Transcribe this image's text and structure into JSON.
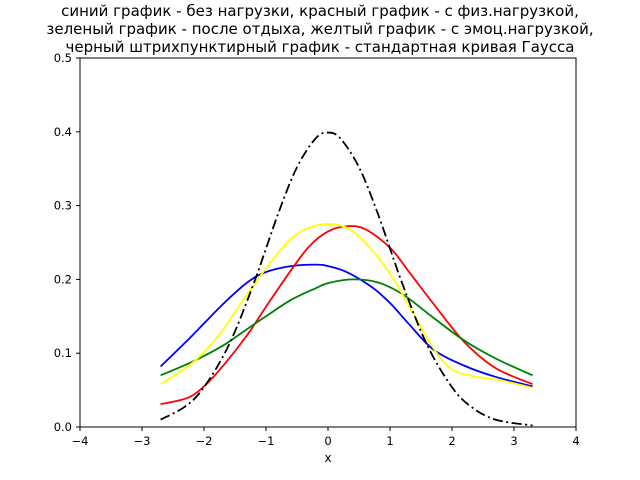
{
  "chart_data": {
    "type": "line",
    "title_lines": [
      "синий график - без нагрузки, красный график - с физ.нагрузкой,",
      "зеленый график - после отдыха, желтый график - с эмоц.нагрузкой,",
      "черный штрихпунктирный график - стандартная кривая Гаусса"
    ],
    "xlabel": "x",
    "ylabel": "",
    "xlim": [
      -4,
      4
    ],
    "ylim": [
      0,
      0.5
    ],
    "xticks": [
      "−4",
      "−3",
      "−2",
      "−1",
      "0",
      "1",
      "2",
      "3",
      "4"
    ],
    "yticks": [
      "0.0",
      "0.1",
      "0.2",
      "0.3",
      "0.4",
      "0.5"
    ],
    "grid": false,
    "legend": "none",
    "series": [
      {
        "color": "#0000ff",
        "style": "solid",
        "x": [
          -2.7,
          -2.2,
          -1.7,
          -1.3,
          -1.0,
          -0.6,
          -0.2,
          0.0,
          0.3,
          0.7,
          1.0,
          1.3,
          1.7,
          2.2,
          2.7,
          3.3
        ],
        "y": [
          0.082,
          0.123,
          0.166,
          0.196,
          0.21,
          0.218,
          0.22,
          0.218,
          0.21,
          0.19,
          0.168,
          0.14,
          0.105,
          0.083,
          0.068,
          0.055
        ]
      },
      {
        "color": "#ff0000",
        "style": "solid",
        "x": [
          -2.7,
          -2.4,
          -2.2,
          -2.0,
          -1.7,
          -1.3,
          -1.0,
          -0.6,
          -0.3,
          0.0,
          0.3,
          0.6,
          1.0,
          1.3,
          1.7,
          2.2,
          2.7,
          3.3
        ],
        "y": [
          0.031,
          0.036,
          0.042,
          0.055,
          0.082,
          0.125,
          0.163,
          0.212,
          0.245,
          0.265,
          0.272,
          0.268,
          0.243,
          0.211,
          0.167,
          0.115,
          0.08,
          0.058
        ]
      },
      {
        "color": "#008000",
        "style": "solid",
        "x": [
          -2.7,
          -2.2,
          -1.7,
          -1.3,
          -1.0,
          -0.6,
          -0.2,
          0.0,
          0.4,
          0.8,
          1.2,
          1.7,
          2.2,
          2.7,
          3.3
        ],
        "y": [
          0.07,
          0.088,
          0.11,
          0.133,
          0.15,
          0.172,
          0.188,
          0.195,
          0.2,
          0.196,
          0.18,
          0.148,
          0.117,
          0.093,
          0.07
        ]
      },
      {
        "color": "#ffff00",
        "style": "solid",
        "x": [
          -2.7,
          -2.2,
          -1.8,
          -1.4,
          -1.0,
          -0.6,
          -0.3,
          0.0,
          0.3,
          0.6,
          1.0,
          1.3,
          1.7,
          2.0,
          2.4,
          2.8,
          3.3
        ],
        "y": [
          0.058,
          0.086,
          0.12,
          0.168,
          0.215,
          0.255,
          0.27,
          0.275,
          0.27,
          0.25,
          0.208,
          0.165,
          0.107,
          0.078,
          0.068,
          0.063,
          0.053
        ]
      },
      {
        "color": "#000000",
        "style": "dashdot",
        "x": [
          -2.7,
          -2.3,
          -2.0,
          -1.6,
          -1.2,
          -0.8,
          -0.5,
          -0.2,
          0.0,
          0.2,
          0.5,
          0.8,
          1.2,
          1.6,
          2.0,
          2.3,
          2.7,
          3.3
        ],
        "y": [
          0.01,
          0.028,
          0.054,
          0.111,
          0.194,
          0.29,
          0.352,
          0.391,
          0.399,
          0.391,
          0.352,
          0.29,
          0.194,
          0.111,
          0.054,
          0.028,
          0.01,
          0.002
        ]
      }
    ]
  }
}
